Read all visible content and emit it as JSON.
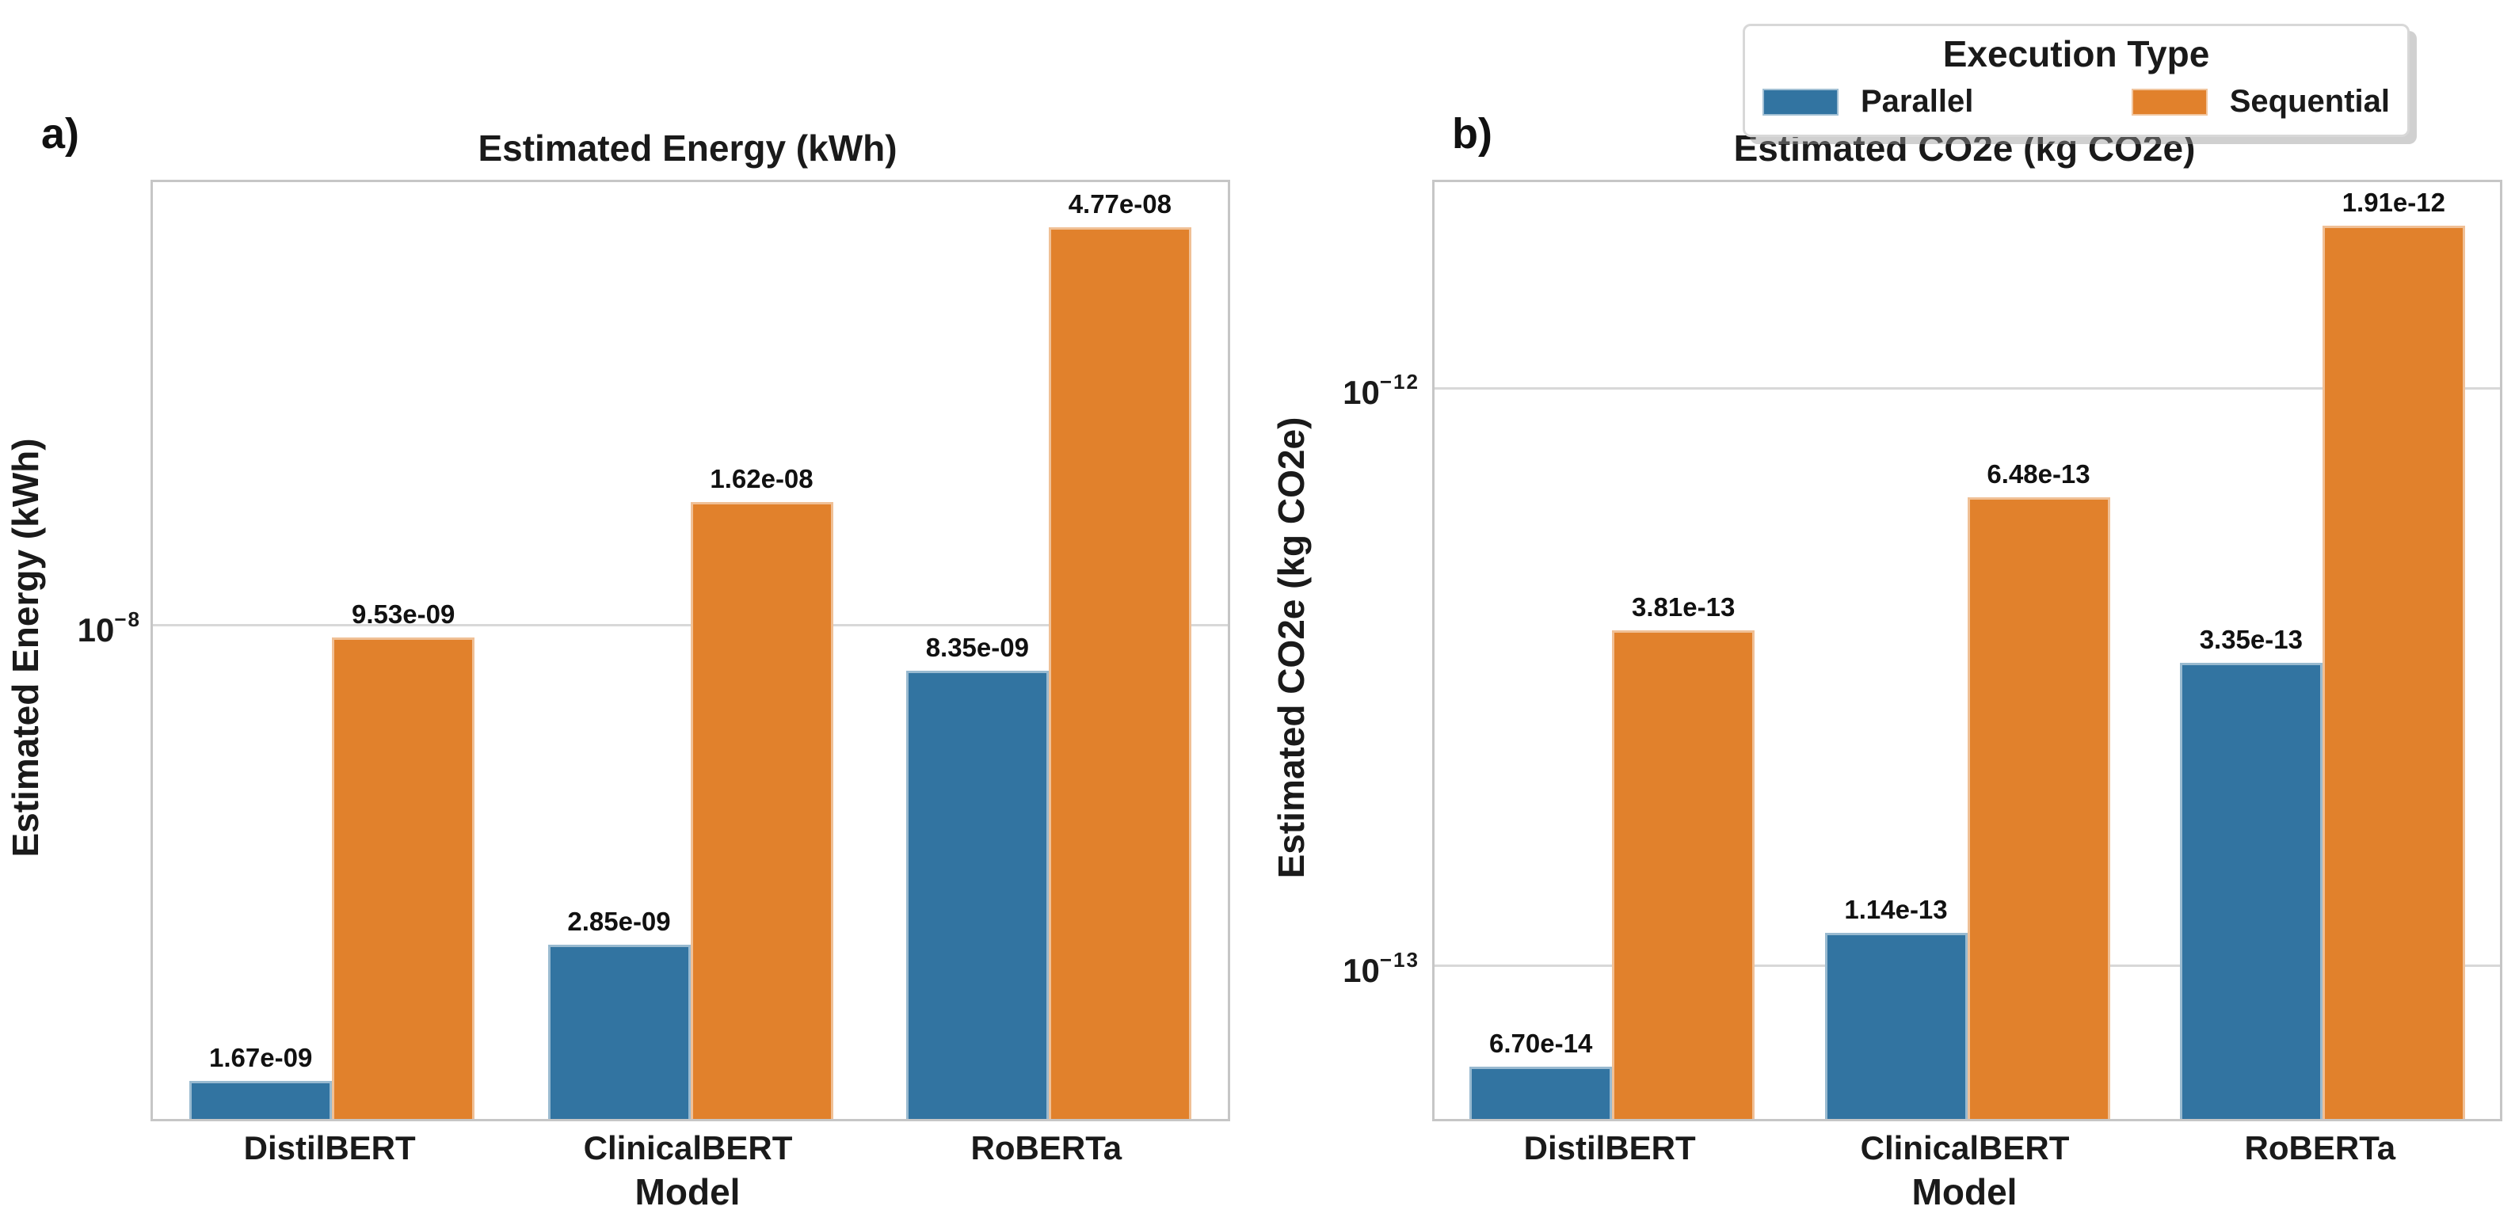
{
  "figure": {
    "background": "#ffffff",
    "text_color": "#1a1a1a",
    "grid_color": "#d8d8d8",
    "spine_color": "#c6c6c6",
    "legend": {
      "title": "Execution Type",
      "position": "upper center",
      "items": [
        {
          "label": "Parallel",
          "color": "#3274a1"
        },
        {
          "label": "Sequential",
          "color": "#e1812c"
        }
      ]
    }
  },
  "chart_data": [
    {
      "type": "bar",
      "panel_label": "a)",
      "title": "Estimated Energy (kWh)",
      "xlabel": "Model",
      "ylabel": "Estimated Energy (kWh)",
      "yscale": "log",
      "grid": "y-major",
      "legend_position": "upper center (shared)",
      "categories": [
        "DistilBERT",
        "ClinicalBERT",
        "RoBERTa"
      ],
      "series": [
        {
          "name": "Parallel",
          "color": "#3274a1",
          "values": [
            1.67e-09,
            2.85e-09,
            8.35e-09
          ],
          "value_labels": [
            "1.67e-09",
            "2.85e-09",
            "8.35e-09"
          ]
        },
        {
          "name": "Sequential",
          "color": "#e1812c",
          "values": [
            9.53e-09,
            1.62e-08,
            4.77e-08
          ],
          "value_labels": [
            "9.53e-09",
            "1.62e-08",
            "4.77e-08"
          ]
        }
      ],
      "yticks": [
        {
          "exp": -8,
          "label": "10^-8"
        }
      ],
      "ylim": [
        1.437e-09,
        5.703e-08
      ]
    },
    {
      "type": "bar",
      "panel_label": "b)",
      "title": "Estimated CO2e (kg CO2e)",
      "xlabel": "Model",
      "ylabel": "Estimated CO2e (kg CO2e)",
      "yscale": "log",
      "grid": "y-major",
      "legend_position": "upper center (shared)",
      "categories": [
        "DistilBERT",
        "ClinicalBERT",
        "RoBERTa"
      ],
      "series": [
        {
          "name": "Parallel",
          "color": "#3274a1",
          "values": [
            6.7e-14,
            1.14e-13,
            3.35e-13
          ],
          "value_labels": [
            "6.70e-14",
            "1.14e-13",
            "3.35e-13"
          ]
        },
        {
          "name": "Sequential",
          "color": "#e1812c",
          "values": [
            3.81e-13,
            6.48e-13,
            1.91e-12
          ],
          "value_labels": [
            "3.81e-13",
            "6.48e-13",
            "1.91e-12"
          ]
        }
      ],
      "yticks": [
        {
          "exp": -12,
          "label": "10^-12"
        },
        {
          "exp": -13,
          "label": "10^-13"
        }
      ],
      "ylim": [
        5.44e-14,
        2.271e-12
      ]
    }
  ]
}
